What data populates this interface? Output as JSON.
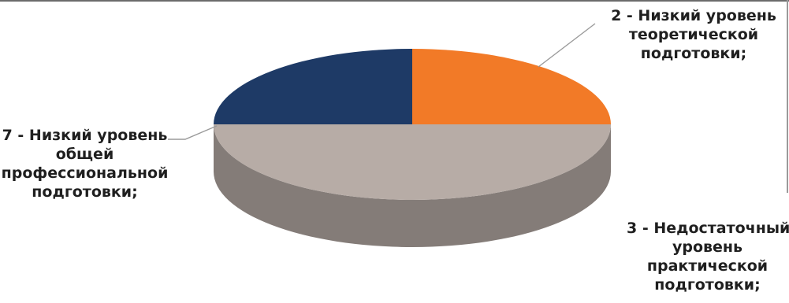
{
  "chart_data": {
    "type": "pie",
    "style": "3d",
    "title": "",
    "slices": [
      {
        "label_lines": [
          "2 - Низкий уровень",
          "теоретической",
          "подготовки;"
        ],
        "value": 25,
        "color": "#f27a27"
      },
      {
        "label_lines": [
          "3 - Недостаточный",
          "уровень",
          "практической",
          "подготовки;"
        ],
        "value": 50,
        "color": "#b7aca6"
      },
      {
        "label_lines": [
          "7 - Низкий уровень",
          "общей",
          "профессиональной",
          "подготовки;"
        ],
        "value": 25,
        "color": "#1e3a66"
      }
    ],
    "legend": "none"
  }
}
